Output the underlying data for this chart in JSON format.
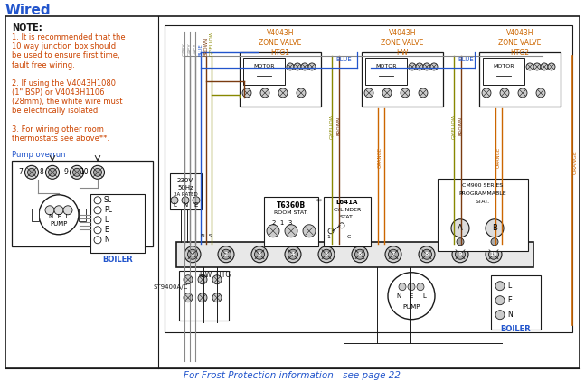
{
  "title": "Wired",
  "footer": "For Frost Protection information - see page 22",
  "bg_color": "#ffffff",
  "border_color": "#1a1a1a",
  "wire_colors": {
    "grey": "#888888",
    "blue": "#2255cc",
    "brown": "#7a3b10",
    "gyellow": "#888800",
    "orange": "#cc6600",
    "black": "#1a1a1a",
    "lt_grey": "#bbbbbb"
  },
  "title_color": "#2255cc",
  "footer_color": "#2255cc",
  "note_color": "#cc4400",
  "zv_label_color": "#cc6600",
  "pump_overrun_color": "#2255cc",
  "boiler_color": "#2255cc",
  "st9400_color": "#1a1a1a",
  "note_lines": [
    "1. It is recommended that the",
    "10 way junction box should",
    "be used to ensure first time,",
    "fault free wiring.",
    "",
    "2. If using the V4043H1080",
    "(1\" BSP) or V4043H1106",
    "(28mm), the white wire must",
    "be electrically isolated.",
    "",
    "3. For wiring other room",
    "thermostats see above**."
  ]
}
